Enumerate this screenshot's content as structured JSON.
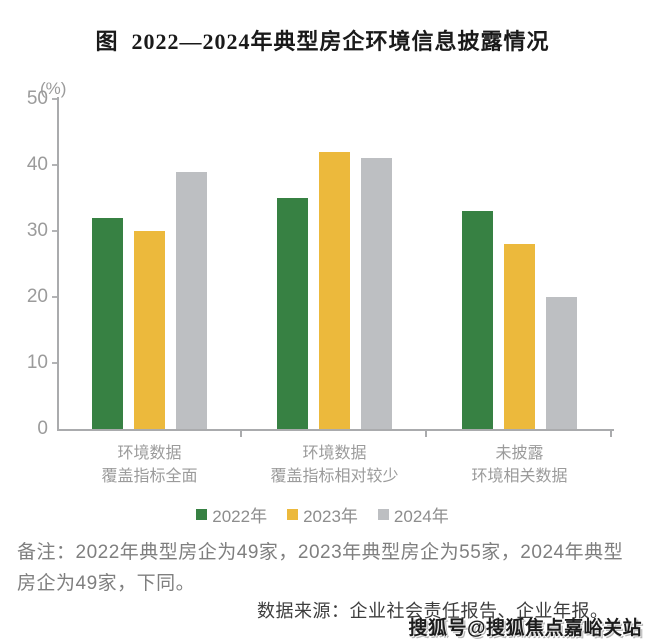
{
  "title": "图  2022—2024年典型房企环境信息披露情况",
  "chart_data": {
    "type": "bar",
    "unit_label": "(%)",
    "categories": [
      "环境数据\n覆盖指标全面",
      "环境数据\n覆盖指标相对较少",
      "未披露\n环境相关数据"
    ],
    "series": [
      {
        "name": "2022年",
        "color": "#378143",
        "values": [
          32,
          35,
          33
        ]
      },
      {
        "name": "2023年",
        "color": "#ECB93C",
        "values": [
          30,
          42,
          28
        ]
      },
      {
        "name": "2024年",
        "color": "#BDBFC2",
        "values": [
          39,
          41,
          20
        ]
      }
    ],
    "ylim": [
      0,
      50
    ],
    "yticks": [
      0,
      10,
      20,
      30,
      40,
      50
    ],
    "grid": false,
    "legend_position": "bottom"
  },
  "note": "备注：2022年典型房企为49家，2023年典型房企为55家，2024年典型房企为49家，下同。",
  "source": "数据来源：企业社会责任报告、企业年报。",
  "watermark": "搜狐号@搜狐焦点嘉峪关站",
  "colors": {
    "axis": "#aaabad",
    "axis_text": "#9b9b9b",
    "title_text": "#1a1a1a",
    "note_text": "#7f7f7f",
    "source_text": "#3d3d3d"
  }
}
